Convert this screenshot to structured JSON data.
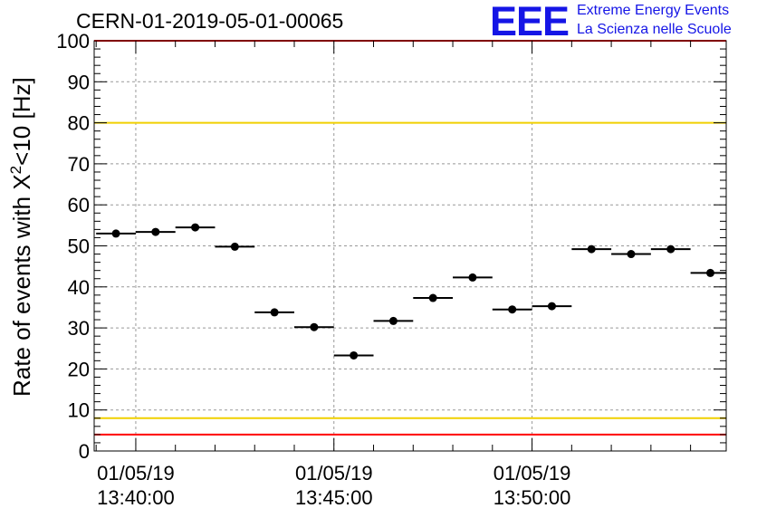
{
  "header": {
    "run_title": "CERN-01-2019-05-01-00065",
    "logo_mark": "EEE",
    "logo_line1": "Extreme Energy Events",
    "logo_line2": "La Scienza nelle Scuole"
  },
  "colors": {
    "data_points": "#000000",
    "red_lines": "#ff0000",
    "yellow_lines": "#f0d000",
    "grid": "#999999",
    "logo": "#1515e6"
  },
  "chart_data": {
    "type": "scatter",
    "ylabel_prefix": "Rate of events with X",
    "ylabel_sup": "2",
    "ylabel_suffix": "<10 [Hz]",
    "xlabel": "",
    "ylim": [
      0,
      100
    ],
    "y_ticks": [
      "0",
      "10",
      "20",
      "30",
      "40",
      "50",
      "60",
      "70",
      "80",
      "90",
      "100"
    ],
    "x_tick_labels": [
      {
        "date": "01/05/19",
        "time": "13:40:00"
      },
      {
        "date": "01/05/19",
        "time": "13:45:00"
      },
      {
        "date": "01/05/19",
        "time": "13:50:00"
      }
    ],
    "x_range_minutes_after_1340": [
      -1.05,
      14.9
    ],
    "grid": true,
    "reference_lines": [
      {
        "y": 100,
        "color": "red"
      },
      {
        "y": 80,
        "color": "yellow"
      },
      {
        "y": 8,
        "color": "yellow"
      },
      {
        "y": 4,
        "color": "red"
      }
    ],
    "series": [
      {
        "x_minutes_after_1340": [
          -0.5,
          0.5,
          1.5,
          2.5,
          3.5,
          4.5,
          5.5,
          6.5,
          7.5,
          8.5,
          9.5,
          10.5,
          11.5,
          12.5,
          13.5,
          14.5
        ],
        "bin_half_width_minutes": 0.5,
        "values": [
          53,
          53.4,
          54.5,
          49.8,
          33.8,
          30.2,
          23.3,
          31.7,
          37.3,
          42.3,
          34.5,
          35.3,
          49.2,
          48,
          49.2,
          43.4
        ]
      }
    ]
  }
}
